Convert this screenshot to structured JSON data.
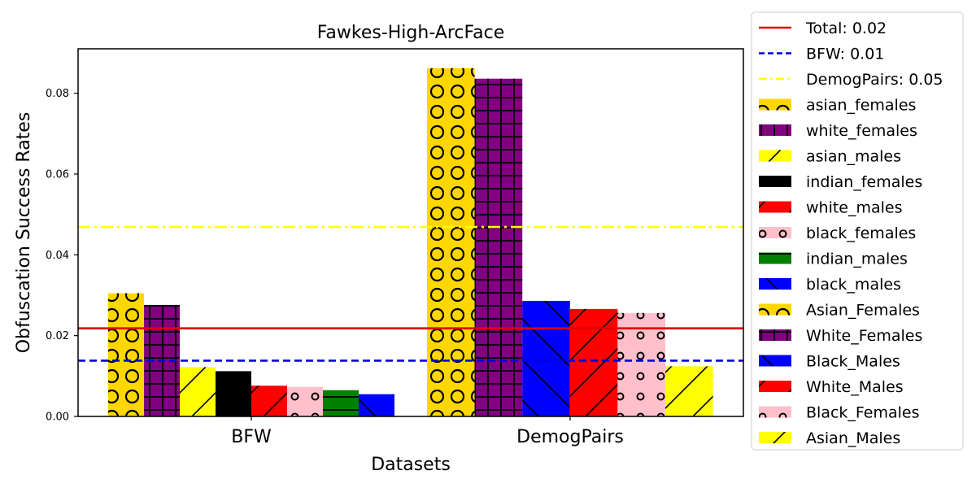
{
  "chart_data": {
    "type": "bar",
    "title": "Fawkes-High-ArcFace",
    "xlabel": "Datasets",
    "ylabel": "Obfuscation Success Rates",
    "ylim": [
      0,
      0.091
    ],
    "yticks": [
      "0.00",
      "0.02",
      "0.04",
      "0.06",
      "0.08"
    ],
    "categories": [
      "BFW",
      "DemogPairs"
    ],
    "bar_groups": [
      {
        "category": "BFW",
        "bars": [
          {
            "series": "asian_females",
            "value": 0.0305
          },
          {
            "series": "white_females",
            "value": 0.0276
          },
          {
            "series": "asian_males",
            "value": 0.0122
          },
          {
            "series": "indian_females",
            "value": 0.0112
          },
          {
            "series": "white_males",
            "value": 0.0076
          },
          {
            "series": "black_females",
            "value": 0.0073
          },
          {
            "series": "indian_males",
            "value": 0.0065
          },
          {
            "series": "black_males",
            "value": 0.0055
          }
        ]
      },
      {
        "category": "DemogPairs",
        "bars": [
          {
            "series": "Asian_Females",
            "value": 0.0862
          },
          {
            "series": "White_Females",
            "value": 0.0836
          },
          {
            "series": "Black_Males",
            "value": 0.0286
          },
          {
            "series": "White_Males",
            "value": 0.0266
          },
          {
            "series": "Black_Females",
            "value": 0.0256
          },
          {
            "series": "Asian_Males",
            "value": 0.0124
          }
        ]
      }
    ],
    "reference_lines": [
      {
        "label": "Total: 0.02",
        "value": 0.0218,
        "color": "#e00000",
        "style": "solid"
      },
      {
        "label": "BFW: 0.01",
        "value": 0.0138,
        "color": "#0000dd",
        "style": "dashed"
      },
      {
        "label": "DemogPairs: 0.05",
        "value": 0.0469,
        "color": "#ffff00",
        "style": "dashdot"
      }
    ],
    "series": [
      {
        "name": "asian_females",
        "color": "#ffd700",
        "hatch": "circles"
      },
      {
        "name": "white_females",
        "color": "#800080",
        "hatch": "grid"
      },
      {
        "name": "asian_males",
        "color": "#ffff00",
        "hatch": "slash"
      },
      {
        "name": "indian_females",
        "color": "#000000",
        "hatch": "none"
      },
      {
        "name": "white_males",
        "color": "#ff0000",
        "hatch": "slash"
      },
      {
        "name": "black_females",
        "color": "#ffc0cb",
        "hatch": "dots"
      },
      {
        "name": "indian_males",
        "color": "#008000",
        "hatch": "hline"
      },
      {
        "name": "black_males",
        "color": "#0000ff",
        "hatch": "backslash"
      },
      {
        "name": "Asian_Females",
        "color": "#ffd700",
        "hatch": "circles"
      },
      {
        "name": "White_Females",
        "color": "#800080",
        "hatch": "grid"
      },
      {
        "name": "Black_Males",
        "color": "#0000ff",
        "hatch": "backslash"
      },
      {
        "name": "White_Males",
        "color": "#ff0000",
        "hatch": "slash"
      },
      {
        "name": "Black_Females",
        "color": "#ffc0cb",
        "hatch": "dots"
      },
      {
        "name": "Asian_Males",
        "color": "#ffff00",
        "hatch": "slash"
      }
    ],
    "grid": false,
    "legend_position": "right"
  }
}
